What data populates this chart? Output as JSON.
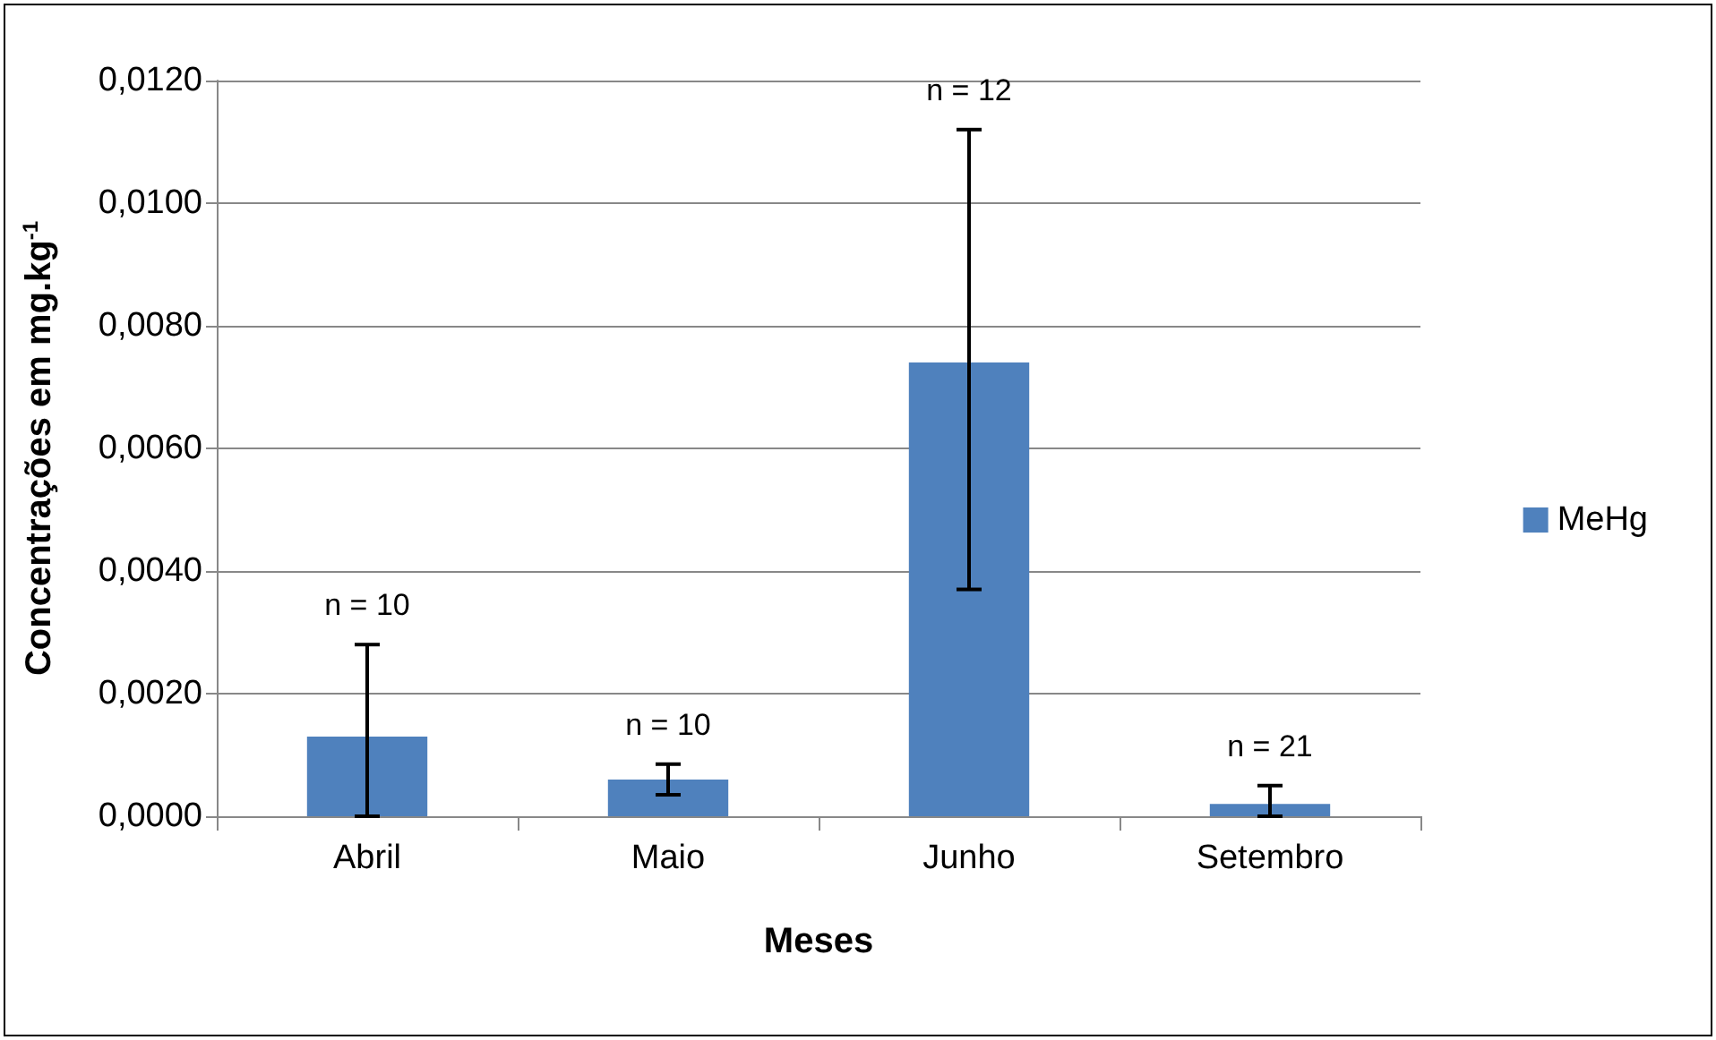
{
  "chart_data": {
    "type": "bar",
    "xlabel": "Meses",
    "ylabel": "Concentrações em mg.kg$^{-1}$",
    "categories": [
      "Abril",
      "Maio",
      "Junho",
      "Setembro"
    ],
    "series": [
      {
        "name": "MeHg",
        "color": "#4f81bd",
        "values": [
          0.0013,
          0.0006,
          0.0074,
          0.0002
        ],
        "errors": [
          [
            0,
            0.0028
          ],
          [
            0.00035,
            0.00085
          ],
          [
            0.0037,
            0.0112
          ],
          [
            0,
            0.0005
          ]
        ]
      }
    ],
    "ylim": [
      0,
      0.012
    ],
    "yticks": [
      {
        "value": 0,
        "label": "0,0000"
      },
      {
        "value": 0.002,
        "label": "0,0020"
      },
      {
        "value": 0.004,
        "label": "0,0040"
      },
      {
        "value": 0.006,
        "label": "0,0060"
      },
      {
        "value": 0.008,
        "label": "0,0080"
      },
      {
        "value": 0.01,
        "label": "0,0100"
      },
      {
        "value": 0.012,
        "label": "0,0120"
      }
    ],
    "annotations": [
      "n = 10",
      "n = 10",
      "n = 12",
      "n = 21"
    ],
    "grid": "y",
    "legend": "right"
  }
}
